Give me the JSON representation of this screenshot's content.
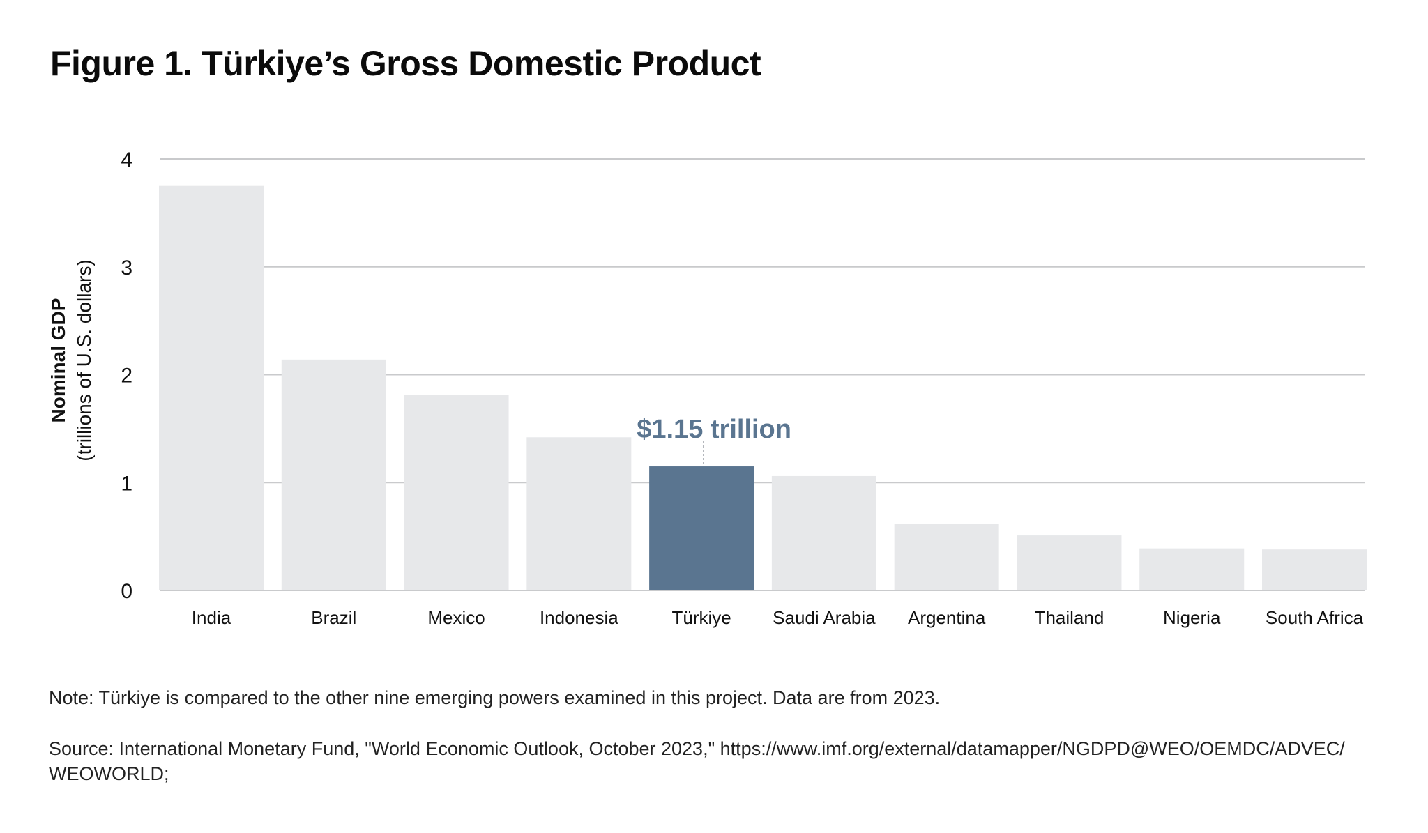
{
  "figure": {
    "title": "Figure 1. Türkiye’s Gross Domestic Product",
    "note": "Note: Türkiye is compared to the other nine emerging powers examined in this project. Data are from 2023.",
    "source_line1": "Source: International Monetary Fund, \"World Economic Outlook, October 2023,\" https://www.imf.org/external/datamapper/NGDPD@WEO/OEMDC/ADVEC/",
    "source_line2": "WEOWORLD;"
  },
  "chart_data": {
    "type": "bar",
    "title": "Figure 1. Türkiye’s Gross Domestic Product",
    "ylabel": "Nominal GDP",
    "ylabel_sub": "(trillions of U.S. dollars)",
    "xlabel": "",
    "categories": [
      "India",
      "Brazil",
      "Mexico",
      "Indonesia",
      "Türkiye",
      "Saudi Arabia",
      "Argentina",
      "Thailand",
      "Nigeria",
      "South Africa"
    ],
    "values": [
      3.75,
      2.14,
      1.81,
      1.42,
      1.15,
      1.06,
      0.62,
      0.51,
      0.39,
      0.38
    ],
    "highlight_index": 4,
    "annotation": "$1.15 trillion",
    "ylim": [
      0,
      4
    ],
    "yticks": [
      0,
      1,
      2,
      3,
      4
    ],
    "grid": true,
    "colors": {
      "bar": "#e7e8ea",
      "highlight": "#5a7590",
      "grid": "#c9cacc",
      "annotation": "#5a7590"
    }
  }
}
